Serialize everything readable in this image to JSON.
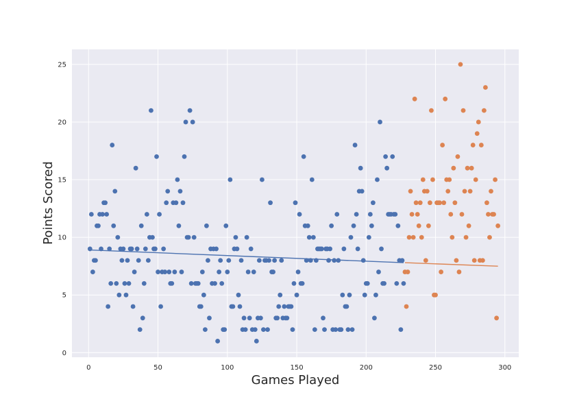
{
  "chart_data": {
    "type": "scatter",
    "title": "",
    "xlabel": "Games Played",
    "ylabel": "Points Scored",
    "xlim": [
      -12,
      310
    ],
    "ylim": [
      -0.4,
      26.3
    ],
    "xticks": [
      0,
      50,
      100,
      150,
      200,
      250,
      300
    ],
    "yticks": [
      0,
      5,
      10,
      15,
      20,
      25
    ],
    "grid": true,
    "background": "#eaeaf2",
    "grid_color": "#ffffff",
    "series": [
      {
        "color": "#4c72b0",
        "x": [
          1,
          2,
          3,
          4,
          5,
          6,
          7,
          8,
          9,
          10,
          11,
          12,
          13,
          14,
          15,
          16,
          17,
          18,
          19,
          20,
          21,
          22,
          23,
          24,
          25,
          26,
          27,
          28,
          29,
          30,
          31,
          32,
          33,
          34,
          35,
          36,
          37,
          38,
          39,
          40,
          41,
          42,
          43,
          44,
          45,
          46,
          47,
          48,
          49,
          50,
          51,
          52,
          53,
          54,
          55,
          56,
          57,
          58,
          59,
          60,
          61,
          62,
          63,
          64,
          65,
          66,
          67,
          68,
          69,
          70,
          71,
          72,
          73,
          74,
          75,
          76,
          77,
          78,
          79,
          80,
          81,
          82,
          83,
          84,
          85,
          86,
          87,
          88,
          89,
          90,
          91,
          92,
          93,
          94,
          95,
          96,
          97,
          98,
          99,
          100,
          101,
          102,
          103,
          104,
          105,
          106,
          107,
          108,
          109,
          110,
          111,
          112,
          113,
          114,
          115,
          116,
          117,
          118,
          119,
          120,
          121,
          122,
          123,
          124,
          125,
          126,
          127,
          128,
          129,
          130,
          131,
          132,
          133,
          134,
          135,
          136,
          137,
          138,
          139,
          140,
          141,
          142,
          143,
          144,
          145,
          146,
          147,
          148,
          149,
          150,
          151,
          152,
          153,
          154,
          155,
          156,
          157,
          158,
          159,
          160,
          161,
          162,
          163,
          164,
          165,
          166,
          167,
          168,
          169,
          170,
          171,
          172,
          173,
          174,
          175,
          176,
          177,
          178,
          179,
          180,
          181,
          182,
          183,
          184,
          185,
          186,
          187,
          188,
          189,
          190,
          191,
          192,
          193,
          194,
          195,
          196,
          197,
          198,
          199,
          200,
          201,
          202,
          203,
          204,
          205,
          206,
          207,
          208,
          209,
          210,
          211,
          212,
          213,
          214,
          215,
          216,
          217,
          218,
          219,
          220,
          221,
          222,
          223,
          224,
          225,
          226,
          227
        ],
        "y": [
          9,
          12,
          7,
          8,
          8,
          11,
          11,
          12,
          9,
          12,
          13,
          13,
          12,
          4,
          9,
          6,
          18,
          11,
          14,
          6,
          10,
          5,
          9,
          8,
          9,
          6,
          5,
          8,
          6,
          9,
          9,
          4,
          7,
          16,
          9,
          8,
          2,
          11,
          3,
          6,
          9,
          12,
          8,
          10,
          21,
          10,
          9,
          9,
          17,
          7,
          12,
          4,
          7,
          9,
          7,
          13,
          14,
          7,
          6,
          6,
          13,
          7,
          13,
          15,
          11,
          14,
          7,
          13,
          17,
          20,
          10,
          10,
          21,
          6,
          20,
          10,
          6,
          6,
          6,
          4,
          4,
          7,
          5,
          2,
          11,
          8,
          3,
          9,
          6,
          9,
          6,
          9,
          1,
          7,
          8,
          6,
          2,
          2,
          11,
          7,
          8,
          15,
          4,
          4,
          9,
          10,
          9,
          5,
          4,
          8,
          2,
          3,
          2,
          10,
          7,
          3,
          9,
          2,
          7,
          2,
          1,
          3,
          8,
          3,
          15,
          2,
          8,
          8,
          2,
          8,
          13,
          7,
          7,
          8,
          3,
          3,
          4,
          5,
          8,
          3,
          4,
          3,
          3,
          4,
          4,
          4,
          2,
          6,
          13,
          5,
          7,
          12,
          6,
          6,
          17,
          11,
          8,
          11,
          10,
          8,
          15,
          10,
          2,
          8,
          9,
          9,
          9,
          9,
          3,
          2,
          9,
          9,
          8,
          9,
          11,
          2,
          8,
          2,
          12,
          8,
          2,
          2,
          5,
          9,
          4,
          4,
          2,
          5,
          10,
          2,
          11,
          18,
          12,
          9,
          14,
          16,
          14,
          8,
          5,
          6,
          6,
          10,
          12,
          11,
          13,
          3,
          5,
          15,
          7,
          20,
          9,
          6,
          6,
          17,
          16,
          12,
          12,
          12,
          17,
          12,
          12,
          6,
          11,
          8,
          2,
          8,
          6
        ]
      },
      {
        "color": "#dd8452",
        "x": [
          228,
          229,
          230,
          231,
          232,
          233,
          234,
          235,
          236,
          237,
          238,
          239,
          240,
          241,
          242,
          243,
          244,
          245,
          246,
          247,
          248,
          249,
          250,
          251,
          252,
          253,
          254,
          255,
          256,
          257,
          258,
          259,
          260,
          261,
          262,
          263,
          264,
          265,
          266,
          267,
          268,
          269,
          270,
          271,
          272,
          273,
          274,
          275,
          276,
          277,
          278,
          279,
          280,
          281,
          282,
          283,
          284,
          285,
          286,
          287,
          288,
          289,
          290,
          291,
          292,
          293,
          294,
          295
        ],
        "y": [
          7,
          4,
          7,
          10,
          14,
          12,
          10,
          22,
          13,
          12,
          11,
          13,
          10,
          15,
          14,
          8,
          14,
          11,
          13,
          21,
          15,
          5,
          5,
          13,
          13,
          13,
          7,
          18,
          13,
          22,
          15,
          14,
          15,
          12,
          10,
          16,
          13,
          8,
          17,
          7,
          25,
          12,
          21,
          14,
          10,
          16,
          11,
          14,
          16,
          18,
          8,
          15,
          19,
          20,
          8,
          18,
          8,
          21,
          23,
          13,
          12,
          10,
          14,
          12,
          12,
          15,
          3,
          11
        ]
      }
    ],
    "trendlines": [
      {
        "color": "#4c72b0",
        "x": [
          1,
          227
        ],
        "y": [
          8.9,
          7.8
        ]
      },
      {
        "color": "#dd8452",
        "x": [
          228,
          295
        ],
        "y": [
          7.8,
          7.5
        ]
      }
    ]
  }
}
